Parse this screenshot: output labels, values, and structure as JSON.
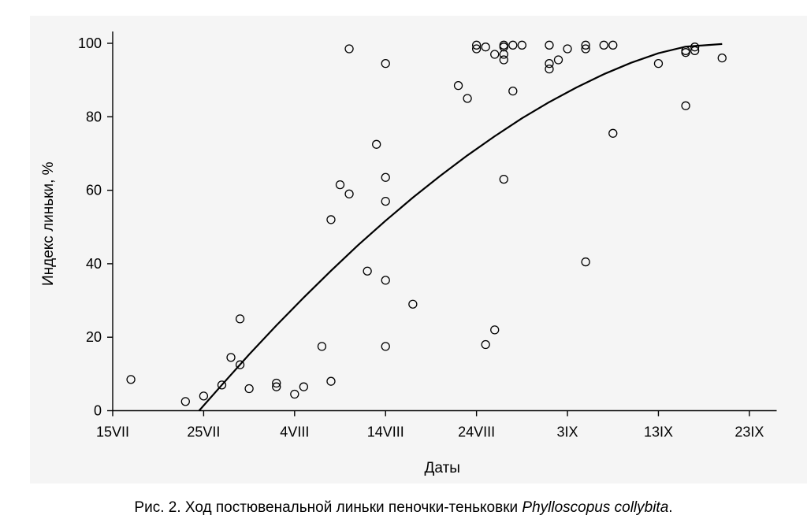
{
  "chart_data": {
    "type": "scatter",
    "xlabel": "Даты",
    "ylabel": "Индекс линьки, %",
    "x_unit": "days since 15VII",
    "xlim": [
      0,
      73
    ],
    "ylim": [
      0,
      100
    ],
    "xticks": [
      {
        "value": 0,
        "label": "15VII"
      },
      {
        "value": 10,
        "label": "25VII"
      },
      {
        "value": 20,
        "label": "4VIII"
      },
      {
        "value": 30,
        "label": "14VIII"
      },
      {
        "value": 40,
        "label": "24VIII"
      },
      {
        "value": 50,
        "label": "3IX"
      },
      {
        "value": 60,
        "label": "13IX"
      },
      {
        "value": 70,
        "label": "23IX"
      }
    ],
    "yticks": [
      0,
      20,
      40,
      60,
      80,
      100
    ],
    "grid": false,
    "legend": "none",
    "series": [
      {
        "marker": "open-circle",
        "points": [
          [
            2,
            8.5
          ],
          [
            8,
            2.5
          ],
          [
            10,
            4
          ],
          [
            12,
            7
          ],
          [
            13,
            14.5
          ],
          [
            14,
            12.5
          ],
          [
            14,
            25
          ],
          [
            15,
            6
          ],
          [
            18,
            6.5
          ],
          [
            18,
            7.5
          ],
          [
            20,
            4.5
          ],
          [
            21,
            6.5
          ],
          [
            23,
            17.5
          ],
          [
            24,
            8
          ],
          [
            24,
            52
          ],
          [
            25,
            61.5
          ],
          [
            26,
            59
          ],
          [
            26,
            98.5
          ],
          [
            28,
            38
          ],
          [
            29,
            72.5
          ],
          [
            30,
            35.5
          ],
          [
            30,
            17.5
          ],
          [
            30,
            57
          ],
          [
            30,
            63.5
          ],
          [
            30,
            94.5
          ],
          [
            33,
            29
          ],
          [
            38,
            88.5
          ],
          [
            39,
            85
          ],
          [
            40,
            99.5
          ],
          [
            40,
            98.5
          ],
          [
            41,
            99
          ],
          [
            41,
            18
          ],
          [
            42,
            97
          ],
          [
            42,
            22
          ],
          [
            43,
            99
          ],
          [
            43,
            99.5
          ],
          [
            43,
            97
          ],
          [
            43,
            95.5
          ],
          [
            43,
            63
          ],
          [
            44,
            99.5
          ],
          [
            44,
            87
          ],
          [
            45,
            99.5
          ],
          [
            48,
            99.5
          ],
          [
            48,
            94.5
          ],
          [
            48,
            93
          ],
          [
            49,
            95.5
          ],
          [
            50,
            98.5
          ],
          [
            52,
            99.5
          ],
          [
            52,
            98.5
          ],
          [
            52,
            40.5
          ],
          [
            54,
            99.5
          ],
          [
            55,
            99.5
          ],
          [
            55,
            75.5
          ],
          [
            60,
            94.5
          ],
          [
            63,
            98
          ],
          [
            63,
            97.5
          ],
          [
            63,
            83
          ],
          [
            64,
            99
          ],
          [
            64,
            98
          ],
          [
            67,
            96
          ]
        ]
      },
      {
        "kind": "fitted-curve",
        "points": [
          [
            9.5,
            0
          ],
          [
            12,
            7
          ],
          [
            15,
            15.3
          ],
          [
            18,
            23.2
          ],
          [
            21,
            30.8
          ],
          [
            24,
            38.1
          ],
          [
            27,
            45.1
          ],
          [
            30,
            51.7
          ],
          [
            33,
            58
          ],
          [
            36,
            63.9
          ],
          [
            39,
            69.5
          ],
          [
            42,
            74.7
          ],
          [
            45,
            79.6
          ],
          [
            48,
            84
          ],
          [
            51,
            88
          ],
          [
            54,
            91.6
          ],
          [
            57,
            94.7
          ],
          [
            60,
            97.3
          ],
          [
            63,
            99.1
          ],
          [
            67,
            99.8
          ]
        ]
      }
    ]
  },
  "caption": {
    "prefix": "Рис. 2. Ход постювенальной линьки пеночки-теньковки ",
    "species": "Phylloscopus collybita",
    "suffix": "."
  }
}
